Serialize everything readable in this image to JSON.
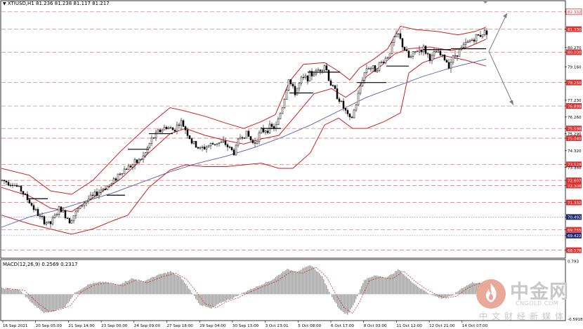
{
  "header": {
    "symbol": "XTIUSD,H1",
    "ohlc": "81.236 81.238 81.117 81.217",
    "macd_label": "MACD(12,26,9) 0.2569 0.2317"
  },
  "watermark": {
    "name": "中金网",
    "url": "CNGOLD.COM",
    "tagline": "中文财经新媒体"
  },
  "chart_data": {
    "type": "candlestick",
    "symbol": "XTIUSD",
    "timeframe": "H1",
    "ylim": [
      68.2,
      82.85
    ],
    "y_ticks": [
      82.332,
      81.33,
      80.27,
      80.0,
      79.16,
      78.25,
      77.23,
      76.899,
      76.26,
      75.598,
      75.29,
      75.04,
      74.32,
      73.529,
      73.35,
      72.607,
      72.308,
      71.332,
      70.492,
      69.755,
      69.422,
      68.578
    ],
    "highlighted_levels": [
      {
        "value": 82.332,
        "style": "outline",
        "color": "#dd3333"
      },
      {
        "value": 81.33,
        "style": "filled",
        "color": "#dd3333"
      },
      {
        "value": 80.0,
        "style": "filled",
        "color": "#dd3333"
      },
      {
        "value": 78.25,
        "style": "filled",
        "color": "#dd3333"
      },
      {
        "value": 76.899,
        "style": "filled",
        "color": "#dd3333"
      },
      {
        "value": 75.598,
        "style": "filled",
        "color": "#dd3333"
      },
      {
        "value": 75.04,
        "style": "filled",
        "color": "#dd3333"
      },
      {
        "value": 73.529,
        "style": "filled",
        "color": "#dd3333"
      },
      {
        "value": 72.607,
        "style": "filled",
        "color": "#dd3333"
      },
      {
        "value": 72.308,
        "style": "filled",
        "color": "#dd3333"
      },
      {
        "value": 71.332,
        "style": "filled",
        "color": "#dd3333"
      },
      {
        "value": 70.492,
        "style": "filled",
        "color": "#1e2a78"
      },
      {
        "value": 69.755,
        "style": "filled",
        "color": "#dd3333"
      },
      {
        "value": 69.422,
        "style": "filled",
        "color": "#1e2a78"
      },
      {
        "value": 68.578,
        "style": "filled",
        "color": "#dd3333"
      }
    ],
    "x_labels": [
      "16 Sep 2021",
      "20 Sep 05:00",
      "21 Sep 14:00",
      "23 Sep 00:00",
      "24 Sep 09:00",
      "27 Sep 18:00",
      "29 Sep 04:00",
      "30 Sep 13:00",
      "3 Oct 23:01",
      "5 Oct 08:00",
      "6 Oct 17:00",
      "8 Oct 03:00",
      "11 Oct 12:00",
      "12 Oct 21:00",
      "14 Oct 07:00"
    ],
    "price_path": [
      [
        0,
        72.6
      ],
      [
        14,
        72.45
      ],
      [
        26,
        72.1
      ],
      [
        40,
        71.3
      ],
      [
        55,
        70.4
      ],
      [
        68,
        70.05
      ],
      [
        82,
        71.0
      ],
      [
        96,
        70.3
      ],
      [
        108,
        70.9
      ],
      [
        118,
        71.4
      ],
      [
        130,
        71.7
      ],
      [
        142,
        72.1
      ],
      [
        156,
        72.4
      ],
      [
        166,
        73.0
      ],
      [
        176,
        73.3
      ],
      [
        190,
        73.6
      ],
      [
        202,
        74.0
      ],
      [
        212,
        74.9
      ],
      [
        222,
        75.4
      ],
      [
        234,
        75.7
      ],
      [
        244,
        75.5
      ],
      [
        254,
        76.0
      ],
      [
        262,
        75.5
      ],
      [
        270,
        74.8
      ],
      [
        282,
        74.4
      ],
      [
        294,
        74.6
      ],
      [
        306,
        74.8
      ],
      [
        318,
        74.7
      ],
      [
        330,
        74.2
      ],
      [
        338,
        75.1
      ],
      [
        348,
        75.3
      ],
      [
        358,
        74.7
      ],
      [
        368,
        75.4
      ],
      [
        378,
        75.6
      ],
      [
        390,
        75.7
      ],
      [
        400,
        77.0
      ],
      [
        408,
        78.5
      ],
      [
        416,
        77.6
      ],
      [
        426,
        78.4
      ],
      [
        436,
        78.6
      ],
      [
        448,
        78.9
      ],
      [
        460,
        79.3
      ],
      [
        466,
        78.3
      ],
      [
        476,
        77.6
      ],
      [
        486,
        76.8
      ],
      [
        496,
        76.0
      ],
      [
        504,
        77.0
      ],
      [
        512,
        78.4
      ],
      [
        520,
        79.2
      ],
      [
        530,
        79.0
      ],
      [
        540,
        79.4
      ],
      [
        550,
        79.8
      ],
      [
        558,
        80.8
      ],
      [
        564,
        81.0
      ],
      [
        570,
        80.4
      ],
      [
        580,
        79.6
      ],
      [
        590,
        80.1
      ],
      [
        600,
        80.2
      ],
      [
        610,
        79.6
      ],
      [
        618,
        80.0
      ],
      [
        628,
        79.7
      ],
      [
        636,
        79.3
      ],
      [
        646,
        79.9
      ],
      [
        656,
        80.3
      ],
      [
        664,
        80.6
      ],
      [
        672,
        80.8
      ],
      [
        680,
        81.0
      ],
      [
        690,
        81.22
      ]
    ],
    "indicators": {
      "bollinger_upper": [
        [
          0,
          73.3
        ],
        [
          40,
          72.9
        ],
        [
          70,
          72.0
        ],
        [
          100,
          71.8
        ],
        [
          130,
          72.6
        ],
        [
          170,
          74.3
        ],
        [
          210,
          75.8
        ],
        [
          240,
          76.8
        ],
        [
          262,
          76.6
        ],
        [
          290,
          76.3
        ],
        [
          320,
          75.9
        ],
        [
          345,
          75.6
        ],
        [
          370,
          76.0
        ],
        [
          390,
          76.4
        ],
        [
          410,
          78.3
        ],
        [
          430,
          79.3
        ],
        [
          460,
          79.4
        ],
        [
          480,
          78.9
        ],
        [
          496,
          78.4
        ],
        [
          510,
          79.1
        ],
        [
          530,
          79.6
        ],
        [
          550,
          80.2
        ],
        [
          568,
          81.5
        ],
        [
          590,
          81.3
        ],
        [
          620,
          81.2
        ],
        [
          650,
          81.0
        ],
        [
          675,
          81.2
        ],
        [
          690,
          81.45
        ]
      ],
      "bollinger_middle": [
        [
          0,
          72.2
        ],
        [
          40,
          71.7
        ],
        [
          70,
          71.0
        ],
        [
          100,
          70.8
        ],
        [
          130,
          71.6
        ],
        [
          170,
          72.7
        ],
        [
          210,
          74.2
        ],
        [
          240,
          75.3
        ],
        [
          262,
          75.6
        ],
        [
          290,
          75.2
        ],
        [
          320,
          74.9
        ],
        [
          345,
          74.7
        ],
        [
          370,
          75.0
        ],
        [
          395,
          75.2
        ],
        [
          420,
          76.4
        ],
        [
          445,
          77.6
        ],
        [
          470,
          77.9
        ],
        [
          490,
          77.4
        ],
        [
          505,
          77.8
        ],
        [
          520,
          78.6
        ],
        [
          540,
          79.2
        ],
        [
          560,
          79.9
        ],
        [
          580,
          80.2
        ],
        [
          610,
          80.3
        ],
        [
          640,
          80.1
        ],
        [
          665,
          80.3
        ],
        [
          690,
          80.75
        ]
      ],
      "bollinger_lower": [
        [
          0,
          70.6
        ],
        [
          40,
          70.1
        ],
        [
          70,
          69.8
        ],
        [
          100,
          69.5
        ],
        [
          130,
          69.8
        ],
        [
          160,
          70.3
        ],
        [
          180,
          70.6
        ],
        [
          210,
          72.2
        ],
        [
          240,
          73.2
        ],
        [
          262,
          73.5
        ],
        [
          290,
          73.4
        ],
        [
          320,
          73.4
        ],
        [
          345,
          73.5
        ],
        [
          370,
          73.6
        ],
        [
          395,
          73.3
        ],
        [
          415,
          73.3
        ],
        [
          440,
          74.2
        ],
        [
          460,
          75.8
        ],
        [
          480,
          76.2
        ],
        [
          500,
          75.6
        ],
        [
          520,
          75.6
        ],
        [
          545,
          76.0
        ],
        [
          568,
          76.5
        ],
        [
          580,
          78.8
        ],
        [
          600,
          79.4
        ],
        [
          630,
          79.8
        ],
        [
          660,
          79.55
        ],
        [
          690,
          79.2
        ]
      ],
      "moving_average": [
        [
          0,
          69.9
        ],
        [
          40,
          70.5
        ],
        [
          80,
          70.9
        ],
        [
          120,
          71.4
        ],
        [
          160,
          71.9
        ],
        [
          200,
          72.5
        ],
        [
          240,
          73.1
        ],
        [
          280,
          73.6
        ],
        [
          320,
          74.0
        ],
        [
          360,
          74.5
        ],
        [
          400,
          75.1
        ],
        [
          440,
          75.8
        ],
        [
          480,
          76.6
        ],
        [
          520,
          77.4
        ],
        [
          560,
          78.0
        ],
        [
          600,
          78.6
        ],
        [
          640,
          79.1
        ],
        [
          690,
          79.6
        ]
      ]
    },
    "macd": {
      "label": "MACD(12,26,9) 0.2569 0.2317",
      "main_value": 0.2569,
      "signal_value": 0.2317,
      "y_ticks": [
        0.793,
        -0.5918
      ],
      "ylim": [
        -0.6,
        0.8
      ],
      "histogram_path": [
        [
          0,
          0.15
        ],
        [
          25,
          0.1
        ],
        [
          45,
          -0.25
        ],
        [
          60,
          -0.45
        ],
        [
          75,
          -0.4
        ],
        [
          90,
          -0.3
        ],
        [
          105,
          0.05
        ],
        [
          125,
          0.25
        ],
        [
          145,
          0.3
        ],
        [
          165,
          0.22
        ],
        [
          185,
          0.38
        ],
        [
          200,
          0.3
        ],
        [
          220,
          0.45
        ],
        [
          240,
          0.55
        ],
        [
          255,
          0.4
        ],
        [
          268,
          0.1
        ],
        [
          282,
          -0.25
        ],
        [
          298,
          -0.35
        ],
        [
          312,
          -0.2
        ],
        [
          328,
          -0.1
        ],
        [
          345,
          0.05
        ],
        [
          365,
          0.2
        ],
        [
          385,
          0.35
        ],
        [
          405,
          0.6
        ],
        [
          420,
          0.55
        ],
        [
          440,
          0.7
        ],
        [
          455,
          0.45
        ],
        [
          468,
          0.0
        ],
        [
          480,
          -0.35
        ],
        [
          492,
          -0.5
        ],
        [
          502,
          -0.2
        ],
        [
          516,
          0.35
        ],
        [
          532,
          0.45
        ],
        [
          548,
          0.4
        ],
        [
          565,
          0.6
        ],
        [
          580,
          0.35
        ],
        [
          595,
          0.15
        ],
        [
          610,
          0.0
        ],
        [
          625,
          -0.1
        ],
        [
          640,
          -0.05
        ],
        [
          655,
          0.15
        ],
        [
          670,
          0.28
        ],
        [
          690,
          0.26
        ]
      ]
    }
  }
}
